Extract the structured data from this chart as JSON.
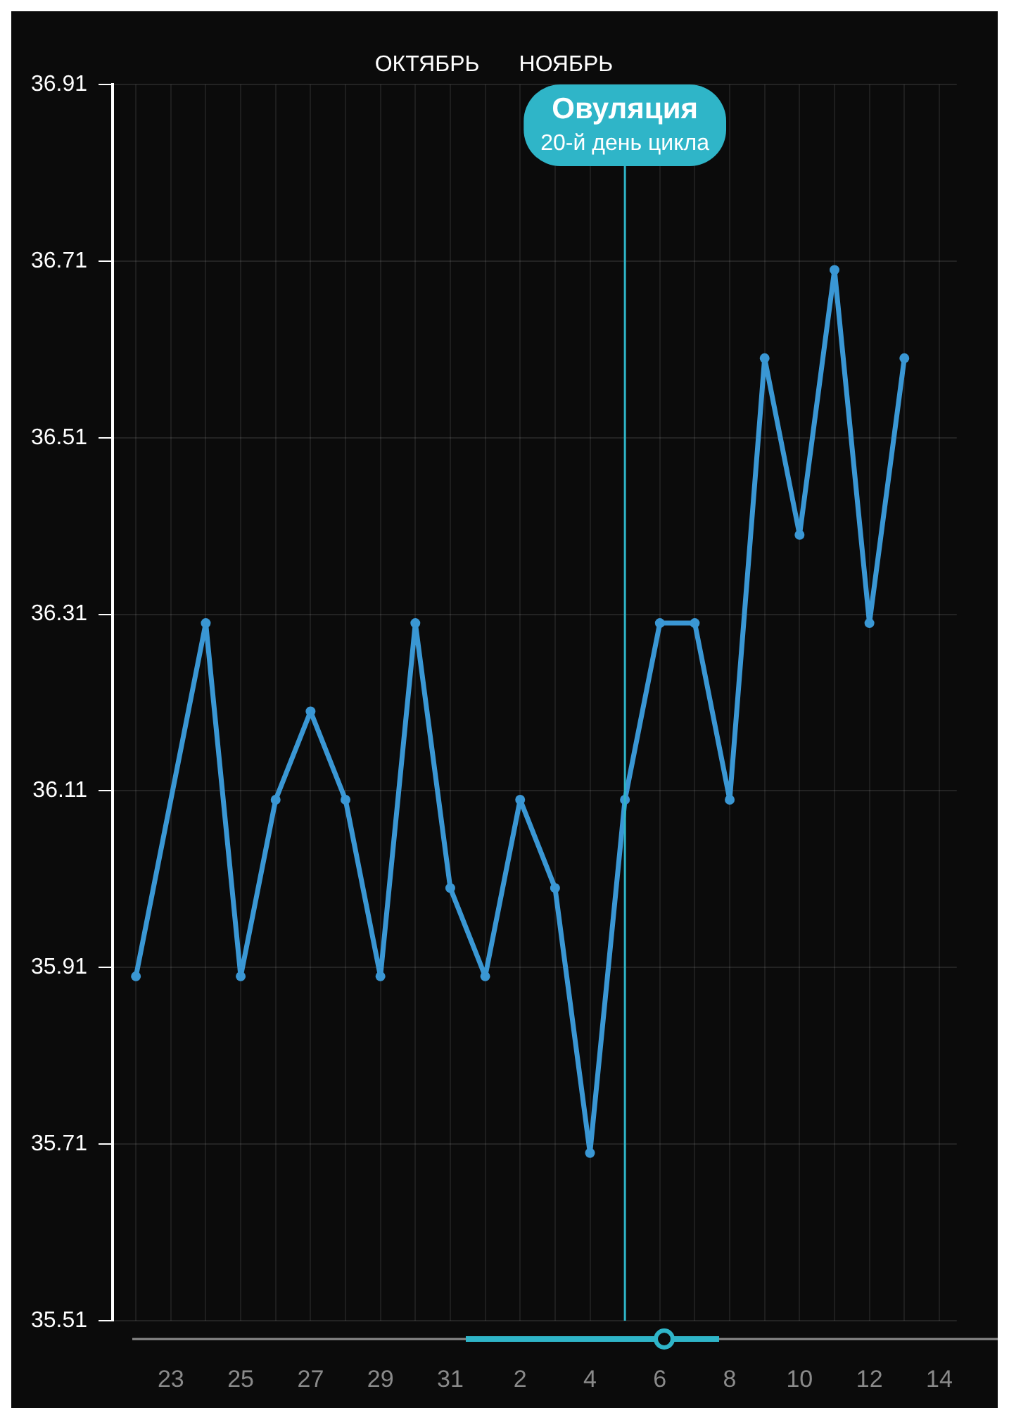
{
  "chart_data": {
    "type": "line",
    "x": [
      "--10-22",
      "--10-24",
      "--10-25",
      "--10-26",
      "--10-27",
      "--10-28",
      "--10-29",
      "--10-30",
      "--10-31",
      "--11-01",
      "--11-02",
      "--11-03",
      "--11-04",
      "--11-05",
      "--11-06",
      "--11-07",
      "--11-08",
      "--11-09",
      "--11-10",
      "--11-11",
      "--11-12",
      "--11-13"
    ],
    "series": [
      {
        "color": "#3a97d4",
        "values": [
          35.9,
          36.3,
          35.9,
          36.1,
          36.2,
          36.1,
          35.9,
          36.3,
          36.0,
          35.9,
          36.1,
          36.0,
          35.7,
          36.1,
          36.3,
          36.3,
          36.1,
          36.6,
          36.4,
          36.7,
          36.3,
          36.6
        ]
      }
    ],
    "xlim": [
      "--10-21T08:00",
      "--11-14T12:00"
    ],
    "xticks": [
      {
        "value": "--10-22",
        "label": null
      },
      {
        "value": "--10-23",
        "label": "23"
      },
      {
        "value": "--10-24",
        "label": null
      },
      {
        "value": "--10-25",
        "label": "25"
      },
      {
        "value": "--10-26",
        "label": null
      },
      {
        "value": "--10-27",
        "label": "27"
      },
      {
        "value": "--10-28",
        "label": null
      },
      {
        "value": "--10-29",
        "label": "29"
      },
      {
        "value": "--10-30",
        "label": null
      },
      {
        "value": "--10-31",
        "label": "31"
      },
      {
        "value": "--11-01",
        "label": null
      },
      {
        "value": "--11-02",
        "label": "2"
      },
      {
        "value": "--11-03",
        "label": null
      },
      {
        "value": "--11-04",
        "label": "4"
      },
      {
        "value": "--11-05",
        "label": null
      },
      {
        "value": "--11-06",
        "label": "6"
      },
      {
        "value": "--11-07",
        "label": null
      },
      {
        "value": "--11-08",
        "label": "8"
      },
      {
        "value": "--11-09",
        "label": null
      },
      {
        "value": "--11-10",
        "label": "10"
      },
      {
        "value": "--11-11",
        "label": null
      },
      {
        "value": "--11-12",
        "label": "12"
      },
      {
        "value": "--11-13",
        "label": null
      },
      {
        "value": "--11-14",
        "label": "14"
      }
    ],
    "ylim": [
      35.51,
      36.91
    ],
    "yticks": [
      35.51,
      35.71,
      35.91,
      36.11,
      36.31,
      36.51,
      36.71,
      36.91
    ],
    "grid": true,
    "marker": "circle",
    "line_style": "solid",
    "legend": false,
    "ref_lines": [
      {
        "axis": "x",
        "value": "--11-05",
        "label": "Овуляция\n20-й день цикла",
        "color": "#2fb5c8"
      }
    ],
    "annotations": [
      "ОКТЯБРЬ",
      "НОЯБРЬ"
    ]
  }
}
